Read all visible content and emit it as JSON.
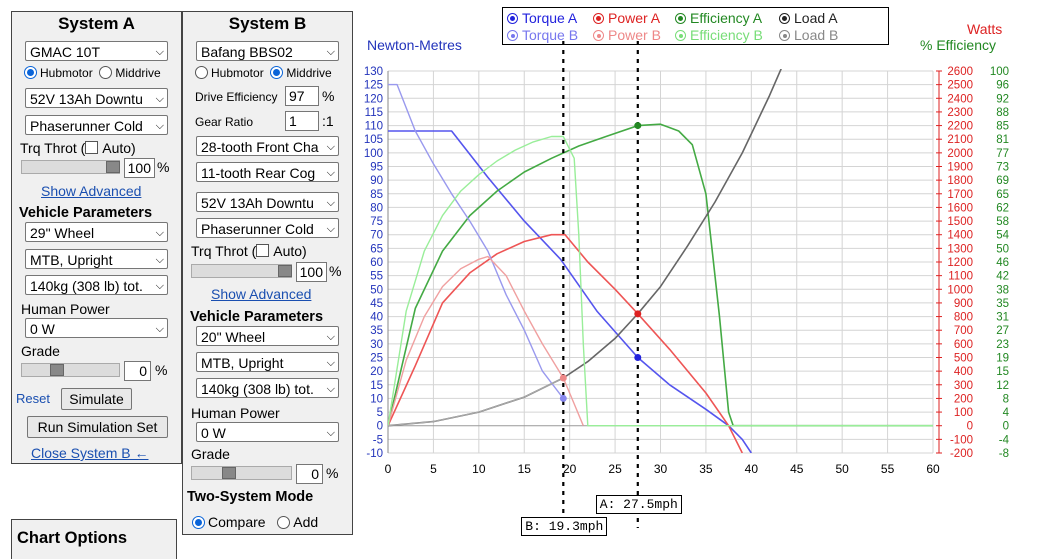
{
  "systemA": {
    "title": "System A",
    "motor": "GMAC 10T",
    "motor_type_options": [
      "Hubmotor",
      "Middrive"
    ],
    "motor_type_selected": "Hubmotor",
    "battery": "52V 13Ah Downtu",
    "controller": "Phaserunner Cold",
    "throttle_label": "Trq Throt (",
    "throttle_auto": "Auto)",
    "throttle_value": "100",
    "throttle_unit": "%",
    "throttle_fraction": 1.0,
    "show_advanced": "Show Advanced",
    "vehicle_params": "Vehicle Parameters",
    "wheel": "29\"  Wheel",
    "bike_type": "MTB, Upright",
    "weight": "140kg (308 lb) tot.",
    "human_power_label": "Human Power",
    "human_power": "0 W",
    "grade_label": "Grade",
    "grade_value": "0",
    "grade_unit": "%",
    "reset": "Reset",
    "simulate": "Simulate",
    "run_set": "Run Simulation Set",
    "close_b": "Close System B ←"
  },
  "systemB": {
    "title": "System B",
    "motor": "Bafang BBS02",
    "motor_type_options": [
      "Hubmotor",
      "Middrive"
    ],
    "motor_type_selected": "Middrive",
    "drive_eff_label": "Drive Efficiency",
    "drive_eff": "97",
    "drive_eff_unit": "%",
    "gear_ratio_label": "Gear Ratio",
    "gear_ratio": "1",
    "gear_ratio_unit": ":1",
    "front_chainring": "28-tooth Front Cha",
    "rear_cog": "11-tooth Rear Cog",
    "battery": "52V 13Ah Downtu",
    "controller": "Phaserunner Cold",
    "throttle_label": "Trq Throt (",
    "throttle_auto": "Auto)",
    "throttle_value": "100",
    "throttle_unit": "%",
    "show_advanced": "Show Advanced",
    "vehicle_params": "Vehicle Parameters",
    "wheel": "20\"  Wheel",
    "bike_type": "MTB, Upright",
    "weight": "140kg (308 lb) tot.",
    "human_power_label": "Human Power",
    "human_power": "0 W",
    "grade_label": "Grade",
    "grade_value": "0",
    "grade_unit": "%",
    "two_system_mode": "Two-System Mode",
    "mode_options": [
      "Compare",
      "Add"
    ],
    "mode_selected": "Compare"
  },
  "chart_options": {
    "title": "Chart Options"
  },
  "chart_data": {
    "type": "line",
    "legend": [
      {
        "label": "Torque A",
        "color": "#2222dd",
        "style": "filled"
      },
      {
        "label": "Power A",
        "color": "#dd2222",
        "style": "filled"
      },
      {
        "label": "Efficiency A",
        "color": "#228822",
        "style": "filled"
      },
      {
        "label": "Load A",
        "color": "#222222",
        "style": "filled"
      },
      {
        "label": "Torque B",
        "color": "#7777ee",
        "style": "hollow"
      },
      {
        "label": "Power B",
        "color": "#ee8888",
        "style": "hollow"
      },
      {
        "label": "Efficiency B",
        "color": "#77dd77",
        "style": "hollow"
      },
      {
        "label": "Load B",
        "color": "#888888",
        "style": "hollow"
      }
    ],
    "left_axis_title": "Newton-Metres",
    "right_axis_title_1": "Watts",
    "right_axis_title_2": "% Efficiency",
    "x_range": [
      0,
      60
    ],
    "x_ticks": [
      0,
      5,
      10,
      15,
      20,
      25,
      30,
      35,
      40,
      45,
      50,
      55,
      60
    ],
    "nm_range": [
      -10,
      130
    ],
    "nm_ticks": [
      -10,
      -5,
      0,
      5,
      10,
      15,
      20,
      25,
      30,
      35,
      40,
      45,
      50,
      55,
      60,
      65,
      70,
      75,
      80,
      85,
      90,
      95,
      100,
      105,
      110,
      115,
      120,
      125,
      130
    ],
    "watts_ticks": [
      -200,
      -100,
      0,
      100,
      200,
      300,
      400,
      500,
      600,
      700,
      800,
      900,
      1000,
      1100,
      1200,
      1300,
      1400,
      1500,
      1600,
      1700,
      1800,
      1900,
      2000,
      2100,
      2200,
      2300,
      2400,
      2500,
      2600
    ],
    "eff_ticks": [
      -8,
      -4,
      0,
      4,
      8,
      12,
      15,
      19,
      23,
      27,
      31,
      35,
      38,
      42,
      46,
      50,
      54,
      58,
      62,
      65,
      69,
      73,
      77,
      81,
      85,
      88,
      92,
      96,
      100
    ],
    "grid": true,
    "series": [
      {
        "name": "Torque A",
        "color": "#5555ee",
        "width": 1.6,
        "x": [
          0,
          7,
          11,
          15,
          19,
          23,
          27.5,
          31,
          35,
          37.5,
          39,
          40
        ],
        "y": [
          108,
          108,
          91,
          75,
          61,
          42,
          25,
          15,
          6,
          0,
          -5,
          -10
        ]
      },
      {
        "name": "Power A",
        "color": "#ee5555",
        "width": 1.6,
        "x": [
          0,
          3,
          6,
          9,
          12,
          15,
          18,
          19.5,
          22,
          25,
          27.5,
          31,
          35,
          37.5,
          39
        ],
        "y": [
          0,
          22,
          45,
          56,
          63,
          67.5,
          70,
          70,
          60,
          50,
          41,
          28,
          12,
          0,
          -10
        ]
      },
      {
        "name": "Efficiency A",
        "color": "#44aa44",
        "width": 1.6,
        "x": [
          0,
          3,
          6,
          9,
          12,
          15,
          18,
          21,
          24,
          27.5,
          30,
          32,
          33.5,
          35,
          36.5,
          37.5,
          38,
          40,
          60
        ],
        "y": [
          0,
          43,
          64,
          77,
          86,
          93,
          98,
          102.5,
          106,
          110,
          110.5,
          108,
          103,
          85,
          40,
          5,
          0,
          0,
          0
        ]
      },
      {
        "name": "Load A",
        "color": "#666666",
        "width": 1.6,
        "x": [
          0,
          5,
          10,
          15,
          19.3,
          22,
          25,
          27.5,
          30,
          33,
          36,
          39,
          42,
          45,
          47.5
        ],
        "y": [
          0,
          1.5,
          5,
          10.5,
          17.5,
          23.5,
          32,
          41,
          51,
          66,
          82,
          100,
          121,
          144,
          163
        ]
      },
      {
        "name": "Torque B",
        "color": "#9999ee",
        "width": 1.4,
        "x": [
          0,
          1,
          3,
          5,
          7,
          9,
          11,
          13,
          15,
          17,
          19.3
        ],
        "y": [
          125,
          125,
          108,
          96,
          85,
          75,
          64,
          48,
          35,
          20,
          10
        ]
      },
      {
        "name": "Power B",
        "color": "#f0a0a0",
        "width": 1.4,
        "x": [
          0,
          2,
          4,
          6,
          8,
          10,
          11,
          13,
          15,
          17,
          19.3,
          20.5,
          21.5
        ],
        "y": [
          0,
          24,
          40,
          51,
          57.5,
          61,
          62,
          55,
          42,
          30,
          17.5,
          8,
          0
        ]
      },
      {
        "name": "Efficiency B",
        "color": "#99ee99",
        "width": 1.4,
        "x": [
          0,
          2,
          4,
          6,
          8,
          10,
          12,
          14,
          16,
          18,
          19.3,
          20.5,
          21,
          21.5,
          22,
          60
        ],
        "y": [
          0,
          42,
          64,
          77,
          86,
          92,
          97,
          101,
          104,
          106,
          106,
          98,
          70,
          30,
          0,
          0
        ]
      },
      {
        "name": "Load B",
        "color": "#aaaaaa",
        "width": 1.2,
        "x": [
          0,
          5,
          10,
          15,
          19.3
        ],
        "y": [
          0,
          1.5,
          5,
          10.5,
          17.5
        ]
      }
    ],
    "markers": [
      {
        "x": 27.5,
        "y": 110,
        "color": "#228822"
      },
      {
        "x": 27.5,
        "y": 41,
        "color": "#dd2222"
      },
      {
        "x": 27.5,
        "y": 25,
        "color": "#2222dd"
      },
      {
        "x": 19.3,
        "y": 17.5,
        "color": "#ee8888"
      },
      {
        "x": 19.3,
        "y": 10,
        "color": "#8888ee"
      }
    ],
    "cursors": [
      {
        "x": 27.5,
        "label": "A: 27.5mph"
      },
      {
        "x": 19.3,
        "label": "B: 19.3mph"
      }
    ]
  }
}
